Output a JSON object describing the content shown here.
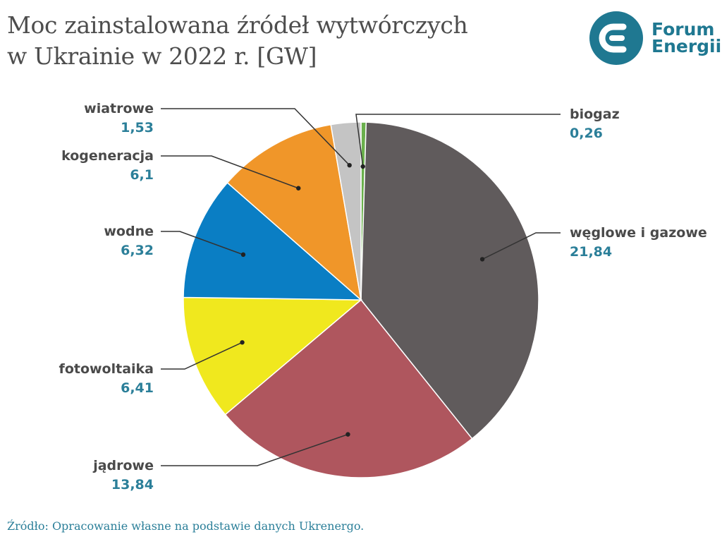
{
  "title": {
    "line1": "Moc zainstalowana źródeł wytwórczych",
    "line2": "w Ukrainie w 2022 r. [GW]"
  },
  "logo": {
    "line1": "Forum",
    "line2": "Energii",
    "brand_color": "#1f7891",
    "icon": "forum-energii-logo-icon"
  },
  "source": "Źródło: Opracowanie własne na podstawie danych Ukrenergo.",
  "chart_data": {
    "type": "pie",
    "title": "Moc zainstalowana źródeł wytwórczych w Ukrainie w 2022 r. [GW]",
    "start": "12 o'clock",
    "direction": "clockwise",
    "slices": [
      {
        "label": "biogaz",
        "value_label": "0,26",
        "value": 0.26,
        "color": "#6ab04c"
      },
      {
        "label": "węglowe i gazowe",
        "value_label": "21,84",
        "value": 21.84,
        "color": "#605b5c"
      },
      {
        "label": "jądrowe",
        "value_label": "13,84",
        "value": 13.84,
        "color": "#af565e"
      },
      {
        "label": "fotowoltaika",
        "value_label": "6,41",
        "value": 6.41,
        "color": "#f0e81e"
      },
      {
        "label": "wodne",
        "value_label": "6,32",
        "value": 6.32,
        "color": "#0a7ec4"
      },
      {
        "label": "kogeneracja",
        "value_label": "6,1",
        "value": 6.1,
        "color": "#f09629"
      },
      {
        "label": "wiatrowe",
        "value_label": "1,53",
        "value": 1.53,
        "color": "#c4c4c4"
      }
    ],
    "label_color": "#4a4a4a",
    "value_color": "#2b7f99"
  }
}
